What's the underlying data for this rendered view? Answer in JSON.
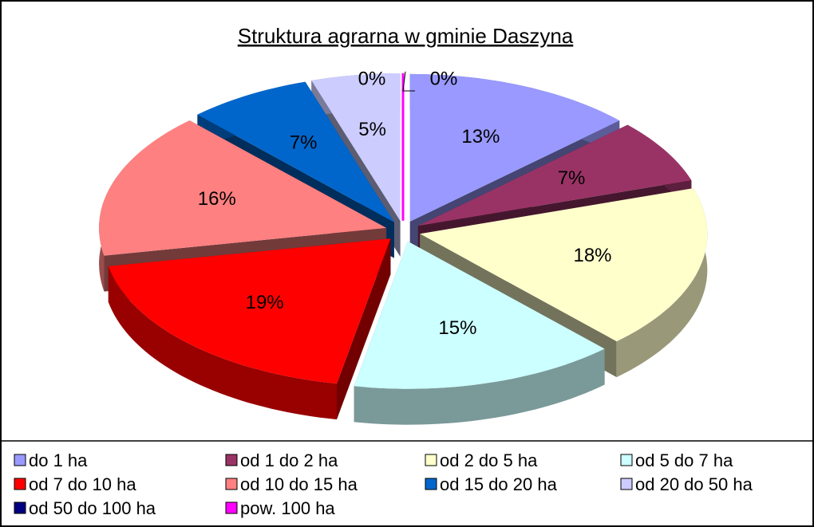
{
  "chart_data": {
    "type": "pie",
    "title": "Struktura agrarna w gminie Daszyna",
    "categories": [
      "do 1 ha",
      "od 1 do 2 ha",
      "od 2 do 5 ha",
      "od 5 do 7 ha",
      "od 7 do 10 ha",
      "od 10 do 15 ha",
      "od 15 do 20 ha",
      "od 20 do 50 ha",
      "od 50 do 100 ha",
      "pow. 100 ha"
    ],
    "values": [
      13,
      7,
      18,
      15,
      19,
      16,
      7,
      5,
      0,
      0
    ],
    "value_labels": [
      "13%",
      "7%",
      "18%",
      "15%",
      "19%",
      "16%",
      "7%",
      "5%",
      "0%",
      "0%"
    ],
    "colors": [
      "#9999ff",
      "#993366",
      "#ffffcc",
      "#ccffff",
      "#ff0000",
      "#ff8080",
      "#0066cc",
      "#ccccff",
      "#000080",
      "#ff00ff"
    ],
    "legend": "bottom"
  }
}
